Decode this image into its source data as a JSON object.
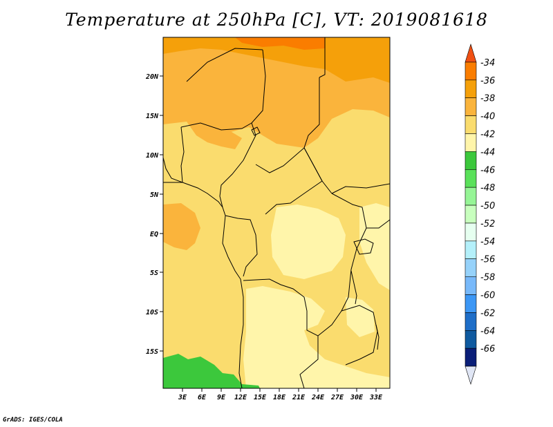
{
  "title": "Temperature at 250hPa [C], VT: 2019081618",
  "credit": "GrADS: IGES/COLA",
  "map": {
    "lat_ticks": [
      "20N",
      "15N",
      "10N",
      "5N",
      "EQ",
      "5S",
      "10S",
      "15S"
    ],
    "lon_ticks": [
      "3E",
      "6E",
      "9E",
      "12E",
      "15E",
      "18E",
      "21E",
      "24E",
      "27E",
      "30E",
      "33E"
    ]
  },
  "legend": {
    "labels": [
      "-34",
      "-36",
      "-38",
      "-40",
      "-42",
      "-44",
      "-46",
      "-48",
      "-50",
      "-52",
      "-54",
      "-56",
      "-58",
      "-60",
      "-62",
      "-64",
      "-66"
    ],
    "colors": [
      "#f05014",
      "#fa7d00",
      "#f5a00a",
      "#fab43c",
      "#fadc6e",
      "#fff5aa",
      "#3cc83c",
      "#5ae15a",
      "#96f596",
      "#c8ffbe",
      "#e6fff0",
      "#b4f0fa",
      "#96d2fa",
      "#78b9fa",
      "#3c97f5",
      "#1e6ec8",
      "#0f5aa0",
      "#0a1e78",
      "#e0e6f5"
    ]
  }
}
